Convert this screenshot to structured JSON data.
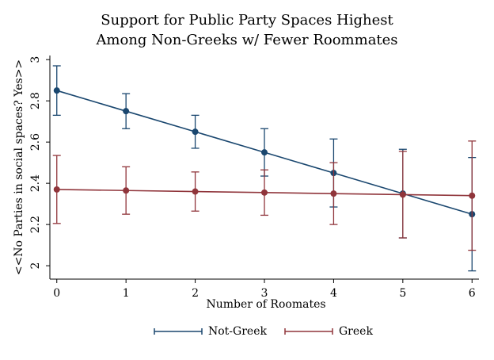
{
  "chart_data": {
    "type": "line",
    "title": [
      "Support for Public Party Spaces Highest",
      "Among Non-Greeks w/ Fewer Roommates"
    ],
    "x_label": "Number of Roomates",
    "y_label": "<<No   Parties in social spaces?   Yes>>",
    "x": [
      0,
      1,
      2,
      3,
      4,
      5,
      6
    ],
    "xlim": [
      -0.1,
      6.1
    ],
    "xticks": [
      0,
      1,
      2,
      3,
      4,
      5,
      6
    ],
    "ylim": [
      1.935,
      3.02
    ],
    "yticks": [
      2,
      2.2,
      2.4,
      2.6,
      2.8,
      3
    ],
    "legend": "bottom",
    "series": [
      {
        "name": "Not-Greek",
        "color": "#1a476f",
        "values": [
          2.85,
          2.75,
          2.65,
          2.55,
          2.45,
          2.35,
          2.25
        ],
        "errors": [
          0.12,
          0.085,
          0.08,
          0.115,
          0.165,
          0.215,
          0.275
        ]
      },
      {
        "name": "Greek",
        "color": "#90353b",
        "values": [
          2.37,
          2.365,
          2.36,
          2.355,
          2.35,
          2.345,
          2.34
        ],
        "errors": [
          0.165,
          0.115,
          0.095,
          0.11,
          0.15,
          0.21,
          0.265
        ]
      }
    ]
  }
}
